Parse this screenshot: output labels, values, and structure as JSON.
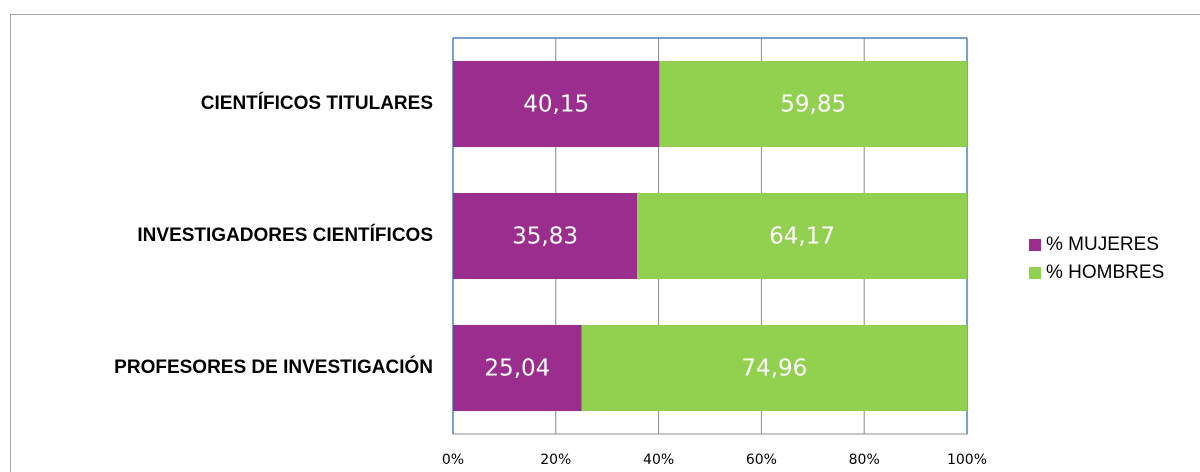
{
  "chart_data": {
    "type": "stacked_bar_horizontal",
    "categories": [
      "CIENTÍFICOS TITULARES",
      "INVESTIGADORES CIENTÍFICOS",
      "PROFESORES DE INVESTIGACIÓN"
    ],
    "series": [
      {
        "name": "% MUJERES",
        "color": "#9b2d8e",
        "values": [
          40.15,
          35.83,
          25.04
        ],
        "value_labels": [
          "40,15",
          "35,83",
          "25,04"
        ]
      },
      {
        "name": "% HOMBRES",
        "color": "#92d050",
        "values": [
          59.85,
          64.17,
          74.96
        ],
        "value_labels": [
          "59,85",
          "64,17",
          "74,96"
        ]
      }
    ],
    "xlim": [
      0,
      100
    ],
    "xticks": [
      {
        "value": 0,
        "label": "0%"
      },
      {
        "value": 20,
        "label": "20%"
      },
      {
        "value": 40,
        "label": "40%"
      },
      {
        "value": 60,
        "label": "60%"
      },
      {
        "value": 80,
        "label": "80%"
      },
      {
        "value": 100,
        "label": "100%"
      }
    ],
    "grid": true,
    "legend": "right"
  }
}
